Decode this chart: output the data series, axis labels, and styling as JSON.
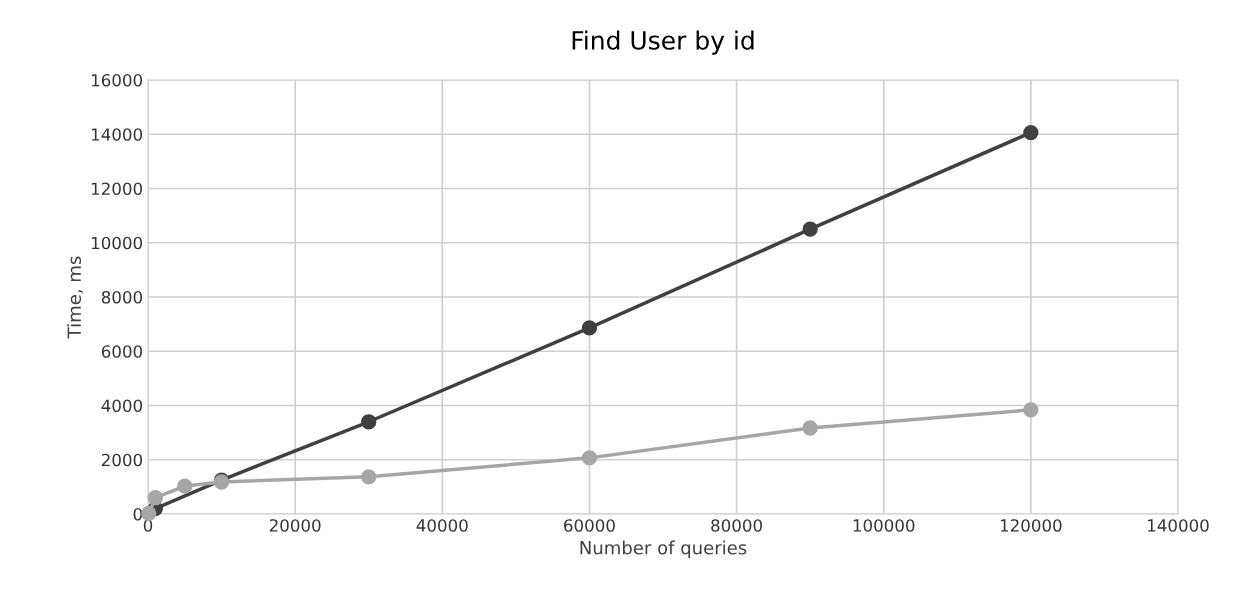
{
  "chart_data": {
    "type": "line",
    "title": "Find User by id",
    "xlabel": "Number of queries",
    "ylabel": "Time, ms",
    "x": [
      100,
      1000,
      5000,
      10000,
      30000,
      60000,
      90000,
      120000
    ],
    "series": [
      {
        "color": "#404040",
        "x": [
          1000,
          10000,
          30000,
          60000,
          90000,
          120000
        ],
        "values": [
          200,
          1250,
          3400,
          6860,
          10500,
          14060
        ]
      },
      {
        "color": "#a6a6a6",
        "values": [
          20,
          600,
          1030,
          1180,
          1370,
          2070,
          3170,
          3840
        ]
      }
    ],
    "xlim": [
      0,
      140000
    ],
    "xticks": [
      0,
      20000,
      40000,
      60000,
      80000,
      100000,
      120000,
      140000
    ],
    "ylim": [
      0,
      16000
    ],
    "yticks": [
      0,
      2000,
      4000,
      6000,
      8000,
      10000,
      12000,
      14000,
      16000
    ],
    "grid": true,
    "marker": "circle",
    "line_style": "solid"
  }
}
